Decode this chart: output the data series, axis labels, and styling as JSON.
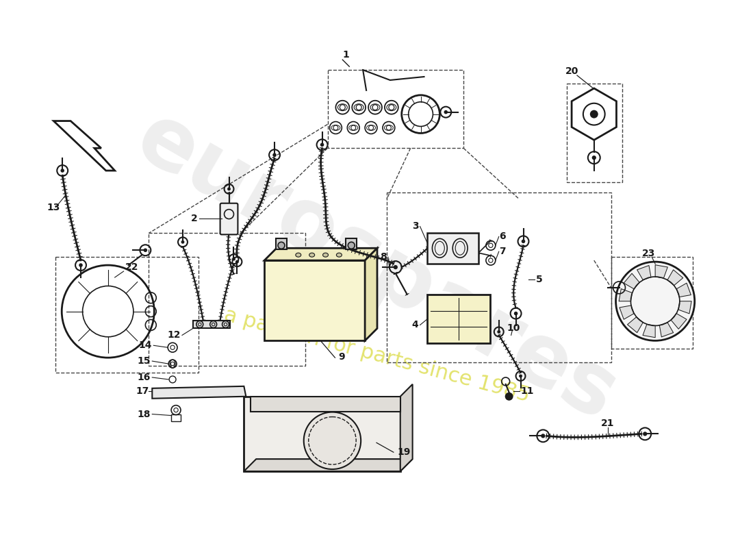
{
  "background_color": "#ffffff",
  "line_color": "#1a1a1a",
  "dashed_color": "#444444",
  "watermark1": "eurospares",
  "watermark2": "a passion for parts since 1985",
  "figsize": [
    11.0,
    8.0
  ],
  "dpi": 100
}
